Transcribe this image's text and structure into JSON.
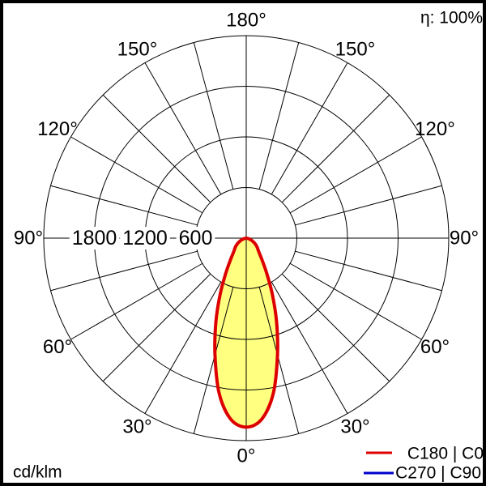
{
  "header": {
    "efficiency": "η: 100%"
  },
  "footer": {
    "unit": "cd/klm"
  },
  "legend": [
    {
      "label": "C180 | C0",
      "color": "#dd0000"
    },
    {
      "label": "C270 | C90",
      "color": "#0000cc"
    }
  ],
  "chart_data": {
    "type": "line",
    "subtype": "polar-photometric-distribution",
    "title": "",
    "unit": "cd/klm",
    "efficiency": "η: 100%",
    "max_value": 2400,
    "ring_step": 600,
    "rings": [
      600,
      1200,
      1800,
      2400
    ],
    "ring_labels": [
      "600",
      "1200",
      "1800"
    ],
    "spoke_step_deg": 15,
    "angle_label_step_deg": 30,
    "angle_labels": [
      "0°",
      "30°",
      "60°",
      "90°",
      "120°",
      "150°",
      "180°"
    ],
    "angle_labels_deg": [
      0,
      30,
      60,
      90,
      120,
      150,
      180
    ],
    "gamma_deg": [
      0,
      5,
      10,
      15,
      20,
      25,
      30,
      35,
      40,
      45,
      50,
      55,
      60,
      65,
      70,
      75,
      80,
      85,
      90
    ],
    "series": [
      {
        "name": "C180 | C0",
        "color": "#dd0000",
        "values": [
          2240,
          2150,
          1860,
          1430,
          1050,
          730,
          490,
          340,
          250,
          200,
          170,
          140,
          110,
          80,
          55,
          35,
          18,
          6,
          0
        ]
      },
      {
        "name": "C270 | C90",
        "color": "#0000cc",
        "values": [
          2240,
          2150,
          1860,
          1430,
          1050,
          730,
          490,
          340,
          250,
          200,
          170,
          140,
          110,
          80,
          55,
          35,
          18,
          6,
          0
        ]
      }
    ],
    "fill_color": "#ffff80",
    "grid_color": "#000000",
    "legend_position": "bottom-right"
  }
}
